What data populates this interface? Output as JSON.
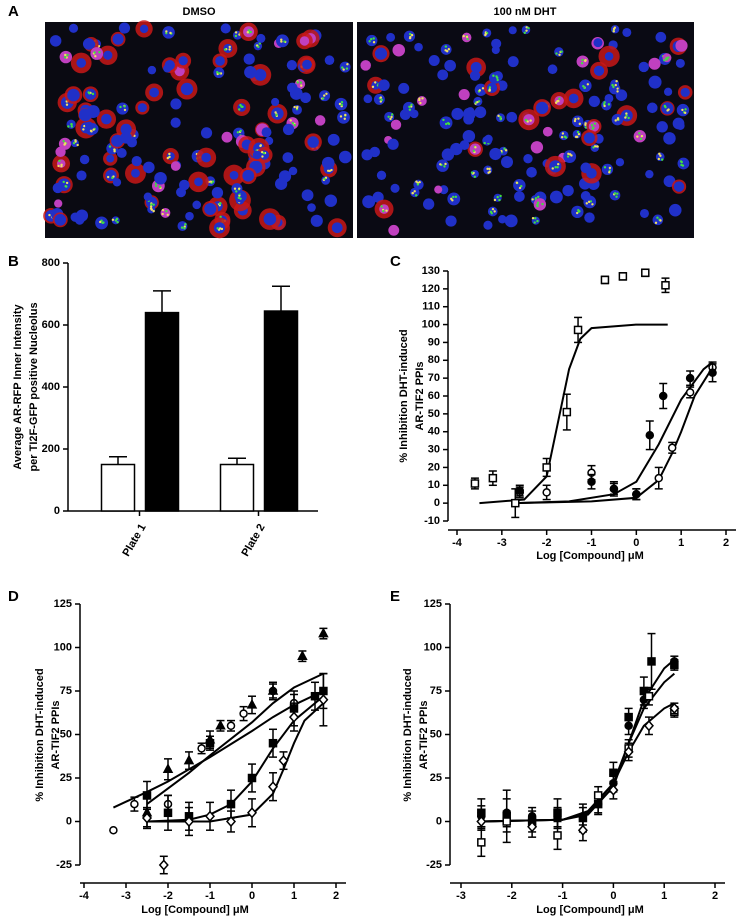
{
  "panel_a": {
    "label": "A",
    "images": [
      {
        "caption": "DMSO"
      },
      {
        "caption": "100 nM DHT"
      }
    ]
  },
  "chart_data": [
    {
      "type": "bar",
      "panel": "B",
      "ylabel": [
        "Average AR-RFP Inner Intensity",
        "per TI2F-GFP positive Nucleolus"
      ],
      "categories": [
        "Plate 1",
        "Plate 2"
      ],
      "series": [
        {
          "color": "#ffffff",
          "values": [
            150,
            150
          ],
          "errors": [
            25,
            20
          ]
        },
        {
          "color": "#000000",
          "values": [
            640,
            645
          ],
          "errors": [
            70,
            80
          ]
        }
      ],
      "ylim": [
        0,
        800
      ],
      "yticks": [
        0,
        200,
        400,
        600,
        800
      ]
    },
    {
      "type": "scatter",
      "panel": "C",
      "color": "#000000",
      "xlabel": "Log [Compound]  μM",
      "ylabel": [
        "% Inhibition DHT-induced",
        "AR-TIF2 PPIs"
      ],
      "xlim": [
        -4,
        2
      ],
      "xticks": [
        -4,
        -3,
        -2,
        -1,
        0,
        1,
        2
      ],
      "ylim": [
        -10,
        130
      ],
      "yticks": [
        -10,
        0,
        10,
        20,
        30,
        40,
        50,
        60,
        70,
        80,
        90,
        100,
        110,
        120,
        130
      ],
      "series": [
        {
          "marker": "square",
          "filled": false,
          "x": [
            -3.6,
            -3.2,
            -2.7,
            -2.0,
            -1.55,
            -1.3,
            -0.7,
            -0.3,
            0.2,
            0.65
          ],
          "values": [
            11,
            14,
            0,
            20,
            51,
            97,
            125,
            127,
            129,
            122
          ],
          "errors": [
            3,
            4,
            8,
            5,
            10,
            7,
            2,
            2,
            2,
            4
          ]
        },
        {
          "marker": "circle",
          "filled": false,
          "x": [
            -2.6,
            -2.0,
            -1.0,
            -0.5,
            0.0,
            0.5,
            0.8,
            1.2,
            1.7
          ],
          "values": [
            6,
            6,
            17,
            8,
            5,
            14,
            31,
            62,
            76
          ],
          "errors": [
            3,
            4,
            4,
            3,
            3,
            6,
            3,
            3,
            3
          ]
        },
        {
          "marker": "circle",
          "filled": true,
          "x": [
            -2.6,
            -1.0,
            -0.5,
            0.0,
            0.3,
            0.6,
            1.2,
            1.7
          ],
          "values": [
            7,
            12,
            8,
            5,
            38,
            60,
            70,
            73
          ],
          "errors": [
            3,
            4,
            4,
            3,
            8,
            7,
            4,
            5
          ]
        }
      ],
      "fits": [
        {
          "x": [
            -3.5,
            -2.5,
            -2.0,
            -1.75,
            -1.5,
            -1.25,
            -1.0,
            0.0,
            0.7
          ],
          "values": [
            0,
            2,
            15,
            45,
            75,
            92,
            98,
            100,
            100
          ]
        },
        {
          "x": [
            -2.7,
            -1.5,
            -0.5,
            0.0,
            0.5,
            1.0,
            1.5,
            1.7
          ],
          "values": [
            0,
            1,
            5,
            12,
            33,
            58,
            75,
            79
          ]
        },
        {
          "x": [
            -2.7,
            -1.0,
            0.0,
            0.5,
            0.8,
            1.0,
            1.3,
            1.7
          ],
          "values": [
            0,
            1,
            3,
            13,
            28,
            40,
            60,
            76
          ]
        }
      ]
    },
    {
      "type": "scatter",
      "panel": "D",
      "color": "#000000",
      "xlabel": "Log [Compound]  μM",
      "ylabel": [
        "% Inhibition DHT-induced",
        "AR-TIF2 PPIs"
      ],
      "xlim": [
        -4,
        2
      ],
      "xticks": [
        -4,
        -3,
        -2,
        -1,
        0,
        1,
        2
      ],
      "ylim": [
        -25,
        125
      ],
      "yticks": [
        -25,
        0,
        25,
        50,
        75,
        100,
        125
      ],
      "series": [
        {
          "marker": "circle",
          "filled": false,
          "x": [
            -3.3,
            -2.8,
            -2.0,
            -1.2,
            -0.5,
            -0.2,
            0.5,
            1.0
          ],
          "values": [
            -5,
            10,
            10,
            42,
            55,
            62,
            75,
            68
          ],
          "errors": [
            0,
            4,
            5,
            3,
            3,
            4,
            5,
            5
          ]
        },
        {
          "marker": "triangle",
          "filled": true,
          "x": [
            -2.5,
            -2.0,
            -1.5,
            -1.0,
            -0.75,
            0.0,
            0.5,
            1.2,
            1.7
          ],
          "values": [
            5,
            30,
            35,
            47,
            55,
            67,
            75,
            95,
            108
          ],
          "errors": [
            8,
            6,
            5,
            5,
            3,
            5,
            4,
            3,
            3
          ]
        },
        {
          "marker": "square",
          "filled": true,
          "x": [
            -2.5,
            -2.0,
            -1.5,
            -1.0,
            -0.5,
            0.0,
            0.5,
            1.0,
            1.5,
            1.7
          ],
          "values": [
            15,
            5,
            3,
            45,
            10,
            25,
            45,
            65,
            72,
            75
          ],
          "errors": [
            8,
            10,
            8,
            4,
            8,
            8,
            8,
            10,
            8,
            10
          ]
        },
        {
          "marker": "diamond",
          "filled": false,
          "x": [
            -2.5,
            -2.1,
            -1.5,
            -1.0,
            -0.5,
            0.0,
            0.5,
            0.75,
            1.0,
            1.7
          ],
          "values": [
            2,
            -25,
            0,
            3,
            0,
            5,
            20,
            35,
            60,
            70
          ],
          "errors": [
            6,
            5,
            8,
            8,
            6,
            8,
            8,
            5,
            8,
            15
          ]
        }
      ],
      "fits": [
        {
          "x": [
            -3.3,
            -2.5,
            -2.0,
            -1.0,
            0.0,
            0.5,
            1.0,
            1.7
          ],
          "values": [
            8,
            17,
            23,
            37,
            52,
            60,
            67,
            75
          ]
        },
        {
          "x": [
            -2.5,
            -1.5,
            -1.0,
            0.0,
            0.5,
            1.0,
            1.7
          ],
          "values": [
            10,
            28,
            38,
            57,
            68,
            77,
            85
          ]
        },
        {
          "x": [
            -2.5,
            -1.5,
            -1.0,
            -0.5,
            0.0,
            0.5,
            1.0,
            1.7
          ],
          "values": [
            0,
            1,
            4,
            10,
            23,
            42,
            58,
            72
          ]
        },
        {
          "x": [
            -2.5,
            -1.0,
            0.0,
            0.5,
            0.75,
            1.0,
            1.25,
            1.7
          ],
          "values": [
            0,
            0,
            4,
            16,
            30,
            45,
            58,
            68
          ]
        }
      ]
    },
    {
      "type": "scatter",
      "panel": "E",
      "color": "#000000",
      "xlabel": "Log [Compound]  μM",
      "ylabel": [
        "% Inhibition DHT-induced",
        "AR-TIF2 PPIs"
      ],
      "xlim": [
        -3,
        2
      ],
      "xticks": [
        -3,
        -2,
        -1,
        0,
        1,
        2
      ],
      "ylim": [
        -25,
        125
      ],
      "yticks": [
        -25,
        0,
        25,
        50,
        75,
        100,
        125
      ],
      "series": [
        {
          "marker": "square",
          "filled": true,
          "x": [
            -2.6,
            -2.1,
            -1.6,
            -1.1,
            -0.6,
            -0.3,
            0.0,
            0.3,
            0.6,
            0.75,
            1.2
          ],
          "values": [
            5,
            3,
            0,
            5,
            2,
            10,
            28,
            60,
            75,
            92,
            90
          ],
          "errors": [
            8,
            15,
            6,
            8,
            8,
            6,
            6,
            5,
            8,
            16,
            3
          ]
        },
        {
          "marker": "circle",
          "filled": true,
          "x": [
            -2.6,
            -2.1,
            -1.6,
            -1.1,
            -0.6,
            -0.3,
            0.0,
            0.3,
            0.6,
            1.2
          ],
          "values": [
            3,
            5,
            3,
            2,
            3,
            10,
            22,
            55,
            70,
            92
          ],
          "errors": [
            6,
            8,
            5,
            6,
            5,
            5,
            5,
            5,
            5,
            3
          ]
        },
        {
          "marker": "square",
          "filled": false,
          "x": [
            -2.6,
            -2.1,
            -1.1,
            -0.3,
            0.3,
            0.7,
            1.2
          ],
          "values": [
            -12,
            0,
            -8,
            15,
            42,
            72,
            63
          ],
          "errors": [
            8,
            6,
            8,
            5,
            5,
            5,
            3
          ]
        },
        {
          "marker": "diamond",
          "filled": false,
          "x": [
            -2.6,
            -1.6,
            -0.6,
            0.0,
            0.3,
            0.7,
            1.2
          ],
          "values": [
            0,
            -3,
            -5,
            18,
            40,
            55,
            65
          ],
          "errors": [
            5,
            6,
            6,
            5,
            5,
            5,
            3
          ]
        }
      ],
      "fits": [
        {
          "x": [
            -2.6,
            -1.0,
            -0.5,
            0.0,
            0.3,
            0.6,
            1.0,
            1.2
          ],
          "values": [
            0,
            1,
            4,
            20,
            45,
            70,
            88,
            93
          ]
        },
        {
          "x": [
            -2.6,
            -1.0,
            -0.5,
            0.0,
            0.3,
            0.6,
            1.0,
            1.2
          ],
          "values": [
            0,
            1,
            5,
            22,
            45,
            65,
            80,
            85
          ]
        },
        {
          "x": [
            -2.6,
            -1.0,
            -0.5,
            0.0,
            0.3,
            0.6,
            1.0,
            1.2
          ],
          "values": [
            0,
            1,
            6,
            22,
            40,
            55,
            65,
            68
          ]
        }
      ]
    }
  ]
}
